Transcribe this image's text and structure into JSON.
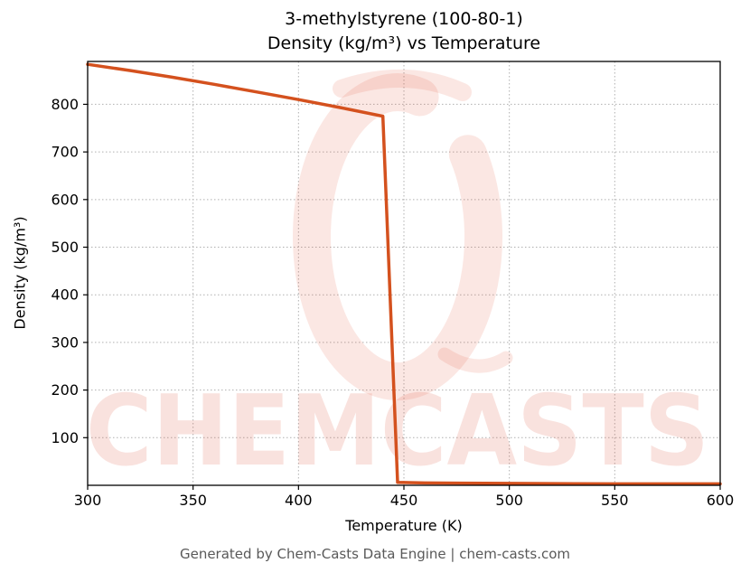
{
  "title": {
    "line1": "3-methylstyrene (100-80-1)",
    "line2": "Density (kg/m³) vs Temperature"
  },
  "footer": {
    "text": "Generated by Chem-Casts Data Engine | chem-casts.com"
  },
  "watermark": {
    "text": "CHEMCASTS",
    "color": "#e0523a",
    "text_opacity": 0.16,
    "ring_opacity": 0.14
  },
  "chart_data": {
    "type": "line",
    "title": "3-methylstyrene (100-80-1) — Density (kg/m³) vs Temperature",
    "xlabel": "Temperature (K)",
    "ylabel": "Density (kg/m³)",
    "xlim": [
      300,
      600
    ],
    "ylim": [
      0,
      890
    ],
    "xticks": [
      300,
      350,
      400,
      450,
      500,
      550,
      600
    ],
    "yticks": [
      100,
      200,
      300,
      400,
      500,
      600,
      700,
      800
    ],
    "grid": true,
    "grid_style": "dotted",
    "line_color": "#d4511e",
    "series": [
      {
        "name": "Density",
        "x": [
          300,
          320,
          340,
          360,
          380,
          400,
          420,
          440,
          447,
          460,
          500,
          550,
          600
        ],
        "y": [
          884,
          871,
          857,
          842,
          826,
          810,
          793,
          775,
          6,
          5,
          4,
          3,
          3
        ]
      }
    ]
  }
}
